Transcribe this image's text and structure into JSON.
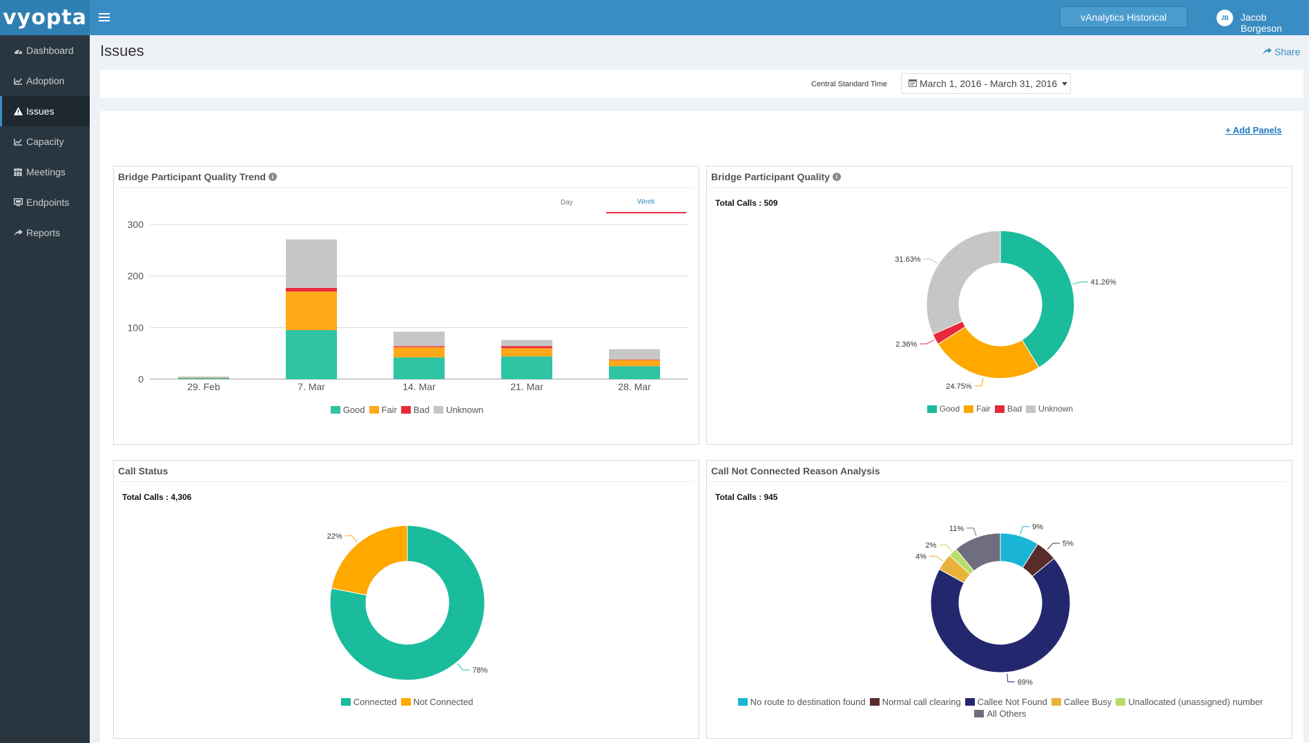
{
  "brand": {
    "name": "vyopta"
  },
  "header": {
    "historical_button": "vAnalytics Historical",
    "user_initials": "JB",
    "user_name": "Jacob Borgeson"
  },
  "sidebar": {
    "items": [
      {
        "label": "Dashboard",
        "icon": "dashboard-icon"
      },
      {
        "label": "Adoption",
        "icon": "line-chart-icon"
      },
      {
        "label": "Issues",
        "icon": "warning-icon",
        "active": true
      },
      {
        "label": "Capacity",
        "icon": "line-chart-icon"
      },
      {
        "label": "Meetings",
        "icon": "people-icon"
      },
      {
        "label": "Endpoints",
        "icon": "monitor-icon"
      },
      {
        "label": "Reports",
        "icon": "share-icon"
      }
    ]
  },
  "page": {
    "title": "Issues",
    "share_label": "Share",
    "timezone_label": "Central Standard Time",
    "date_range": "March 1, 2016 - March 31, 2016",
    "add_panels": "+ Add Panels"
  },
  "colors": {
    "good": "#1abc9c",
    "fair": "#ffa800",
    "bad": "#e8293b",
    "unknown": "#c6c6c6",
    "accent": "#3a8dc2"
  },
  "panels": {
    "trend": {
      "title": "Bridge Participant Quality Trend",
      "toggle_day": "Day",
      "toggle_week": "Week"
    },
    "quality": {
      "title": "Bridge Participant Quality",
      "total_label": "Total Calls : 509"
    },
    "call_status": {
      "title": "Call Status",
      "total_label": "Total Calls : 4,306"
    },
    "reason": {
      "title": "Call Not Connected Reason Analysis",
      "total_label": "Total Calls : 945"
    }
  },
  "chart_data": [
    {
      "type": "bar",
      "stacked": true,
      "title": "Bridge Participant Quality Trend",
      "categories": [
        "29. Feb",
        "7. Mar",
        "14. Mar",
        "21. Mar",
        "28. Mar"
      ],
      "series": [
        {
          "name": "Good",
          "values": [
            2,
            95,
            42,
            44,
            25
          ],
          "color": "#2ec4a4"
        },
        {
          "name": "Fair",
          "values": [
            1,
            75,
            20,
            16,
            12
          ],
          "color": "#ffa81a"
        },
        {
          "name": "Bad",
          "values": [
            0,
            7,
            2,
            4,
            1
          ],
          "color": "#e8293b"
        },
        {
          "name": "Unknown",
          "values": [
            2,
            94,
            28,
            12,
            20
          ],
          "color": "#c6c6c6"
        }
      ],
      "yticks": [
        0,
        100,
        200,
        300
      ],
      "ylim": [
        0,
        300
      ],
      "legend": "bottom"
    },
    {
      "type": "pie",
      "donut": true,
      "title": "Bridge Participant Quality",
      "slices": [
        {
          "name": "Good",
          "value": 41.26,
          "label": "41.26%",
          "color": "#1abc9c"
        },
        {
          "name": "Fair",
          "value": 24.75,
          "label": "24.75%",
          "color": "#ffa800"
        },
        {
          "name": "Bad",
          "value": 2.36,
          "label": "2.36%",
          "color": "#e8293b"
        },
        {
          "name": "Unknown",
          "value": 31.63,
          "label": "31.63%",
          "color": "#c6c6c6"
        }
      ],
      "legend": "bottom"
    },
    {
      "type": "pie",
      "donut": true,
      "title": "Call Status",
      "slices": [
        {
          "name": "Connected",
          "value": 78,
          "label": "78%",
          "color": "#1abc9c"
        },
        {
          "name": "Not Connected",
          "value": 22,
          "label": "22%",
          "color": "#ffa800"
        }
      ],
      "legend": "bottom"
    },
    {
      "type": "pie",
      "donut": true,
      "title": "Call Not Connected Reason Analysis",
      "slices": [
        {
          "name": "No route to destination found",
          "value": 9,
          "label": "9%",
          "color": "#1ab5d6"
        },
        {
          "name": "Normal call clearing",
          "value": 5,
          "label": "5%",
          "color": "#5a2b2b"
        },
        {
          "name": "Callee Not Found",
          "value": 69,
          "label": "69%",
          "color": "#23286e"
        },
        {
          "name": "Callee Busy",
          "value": 4,
          "label": "4%",
          "color": "#e9b33a"
        },
        {
          "name": "Unallocated (unassigned) number",
          "value": 2,
          "label": "2%",
          "color": "#b6dd6a"
        },
        {
          "name": "All Others",
          "value": 11,
          "label": "11%",
          "color": "#6e6e7e"
        }
      ],
      "legend": "bottom"
    }
  ]
}
